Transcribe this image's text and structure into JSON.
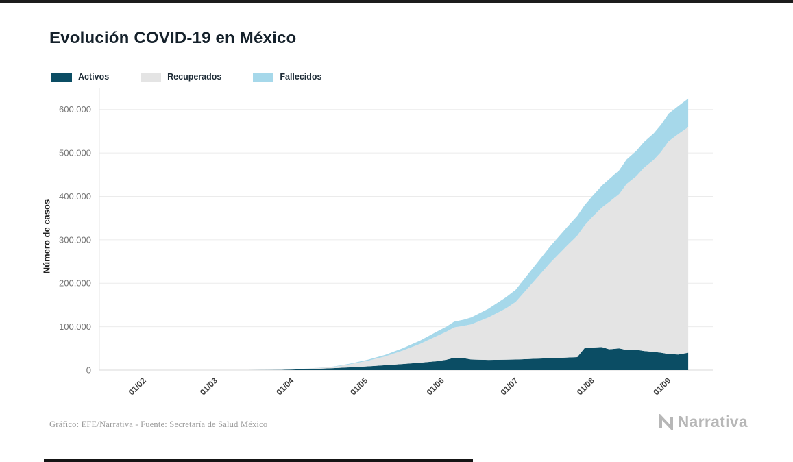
{
  "page": {
    "title": "Evolución COVID-19 en México",
    "footer_credit": "Gráfico: EFE/Narrativa - Fuente: Secretaría de Salud México",
    "brand": "Narrativa"
  },
  "chart_data": {
    "type": "area",
    "stacked": true,
    "grid": true,
    "legend_position": "top-left",
    "title": "Evolución COVID-19 en México",
    "xlabel": "",
    "ylabel": "Número de casos",
    "ylim": [
      0,
      650000
    ],
    "y_ticks": [
      0,
      100000,
      200000,
      300000,
      400000,
      500000,
      600000
    ],
    "y_tick_labels": [
      "0",
      "100.000",
      "200.000",
      "300.000",
      "400.000",
      "500.000",
      "600.000"
    ],
    "x_domain_days": [
      -18,
      231
    ],
    "x_ticks": [
      0,
      29,
      60,
      90,
      121,
      151,
      182,
      213
    ],
    "x_tick_labels": [
      "01/02",
      "01/03",
      "01/04",
      "01/05",
      "01/06",
      "01/07",
      "01/08",
      "01/09"
    ],
    "x_days": [
      21,
      28,
      35,
      42,
      49,
      56,
      63,
      70,
      77,
      84,
      91,
      98,
      105,
      112,
      119,
      123,
      126,
      130,
      133,
      140,
      147,
      151,
      158,
      165,
      172,
      176,
      179,
      182,
      186,
      189,
      193,
      196,
      200,
      203,
      207,
      210,
      213,
      217,
      221
    ],
    "dates": [
      "22/02",
      "29/02",
      "07/03",
      "14/03",
      "21/03",
      "28/03",
      "04/04",
      "11/04",
      "18/04",
      "25/04",
      "02/05",
      "09/05",
      "16/05",
      "23/05",
      "30/05",
      "03/06",
      "06/06",
      "10/06",
      "13/06",
      "20/06",
      "27/06",
      "01/07",
      "08/07",
      "15/07",
      "22/07",
      "26/07",
      "29/07",
      "01/08",
      "05/08",
      "08/08",
      "12/08",
      "15/08",
      "19/08",
      "22/08",
      "26/08",
      "29/08",
      "01/09",
      "05/09",
      "09/09"
    ],
    "series": [
      {
        "name": "Activos",
        "color": "#0b4d64",
        "values": [
          3,
          4,
          7,
          40,
          200,
          650,
          1700,
          3000,
          4500,
          6500,
          8600,
          11200,
          14000,
          17000,
          20500,
          24000,
          28500,
          27500,
          24500,
          23500,
          24000,
          24500,
          26000,
          27500,
          29000,
          30000,
          51000,
          52000,
          53000,
          48000,
          50000,
          46000,
          47000,
          44000,
          42000,
          40000,
          37000,
          36000,
          40000
        ]
      },
      {
        "name": "Recuperados",
        "color": "#e4e4e4",
        "values": [
          0,
          1,
          1,
          4,
          20,
          80,
          650,
          1900,
          3100,
          7200,
          13200,
          20300,
          30800,
          43000,
          58000,
          65000,
          70000,
          74500,
          81000,
          98000,
          118000,
          132500,
          176000,
          219500,
          258500,
          279500,
          282500,
          300000,
          321500,
          339500,
          355500,
          382500,
          400000,
          421500,
          442000,
          462500,
          489500,
          507500,
          519500
        ]
      },
      {
        "name": "Fallecidos",
        "color": "#a6d8ea",
        "values": [
          0,
          0,
          0,
          0,
          2,
          16,
          80,
          300,
          700,
          1400,
          2300,
          3600,
          5300,
          7500,
          10200,
          11700,
          13000,
          14500,
          16000,
          20000,
          25500,
          28000,
          33000,
          38000,
          42500,
          45500,
          46500,
          48000,
          50500,
          52500,
          54500,
          56500,
          58000,
          59500,
          61000,
          62500,
          63500,
          64500,
          65500
        ]
      }
    ]
  }
}
